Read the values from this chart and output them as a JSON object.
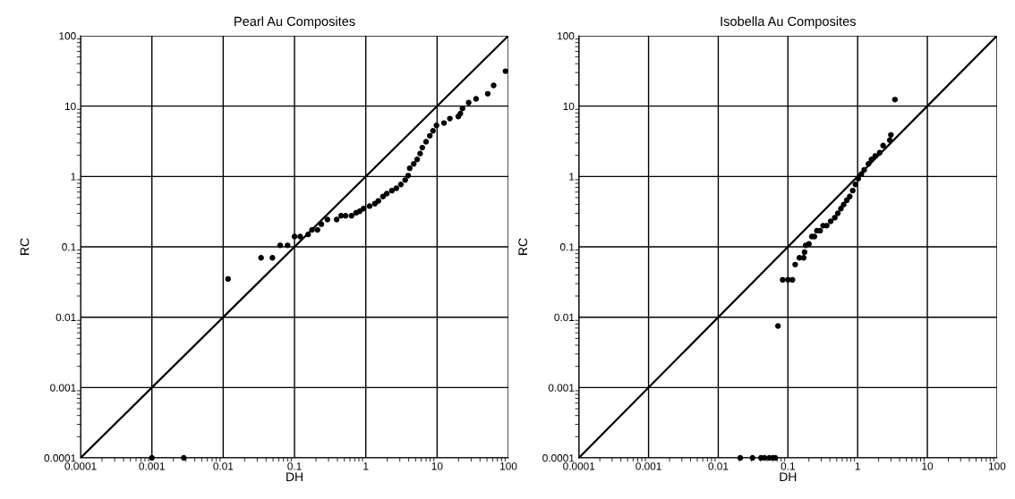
{
  "chart_data": [
    {
      "type": "scatter",
      "title": "Pearl Au Composites",
      "xlabel": "DH",
      "ylabel": "RC",
      "log": "xy",
      "grid": true,
      "legend": false,
      "marker": "circle",
      "xlim": [
        0.0001,
        100
      ],
      "ylim": [
        0.0001,
        100
      ],
      "xticks": [
        0.0001,
        0.001,
        0.01,
        0.1,
        1,
        10,
        100
      ],
      "yticks": [
        0.0001,
        0.001,
        0.01,
        0.1,
        1,
        10,
        100
      ],
      "series": [
        {
          "color": "#000000",
          "x": [
            0.001,
            0.0028,
            0.0117,
            0.034,
            0.049,
            0.063,
            0.08,
            0.1,
            0.12,
            0.155,
            0.176,
            0.21,
            0.238,
            0.29,
            0.39,
            0.45,
            0.52,
            0.63,
            0.73,
            0.82,
            0.93,
            1.13,
            1.34,
            1.5,
            1.74,
            1.97,
            2.32,
            2.68,
            3.1,
            3.57,
            3.93,
            4.13,
            4.7,
            5.25,
            5.78,
            6.2,
            7.0,
            7.9,
            8.75,
            9.8,
            12.5,
            15.1,
            19.8,
            21.2,
            22.7,
            27.7,
            35.2,
            51.3,
            62,
            91
          ],
          "values": [
            0.0001,
            0.0001,
            0.035,
            0.07,
            0.07,
            0.105,
            0.105,
            0.14,
            0.14,
            0.15,
            0.174,
            0.174,
            0.21,
            0.244,
            0.244,
            0.277,
            0.277,
            0.277,
            0.305,
            0.32,
            0.35,
            0.38,
            0.41,
            0.45,
            0.52,
            0.57,
            0.63,
            0.68,
            0.77,
            0.89,
            1.03,
            1.31,
            1.51,
            1.75,
            2.12,
            2.57,
            3.12,
            3.79,
            4.47,
            5.32,
            5.75,
            6.65,
            7.13,
            7.85,
            9.25,
            11.2,
            12.7,
            15.0,
            19.7,
            31.4
          ]
        },
        {
          "type": "line",
          "color": "#000000",
          "marker": "none",
          "x": [
            0.0001,
            100
          ],
          "values": [
            0.0001,
            100
          ]
        }
      ]
    },
    {
      "type": "scatter",
      "title": "Isobella Au Composites",
      "xlabel": "DH",
      "ylabel": "RC",
      "log": "xy",
      "grid": true,
      "legend": false,
      "marker": "circle",
      "xlim": [
        0.0001,
        100
      ],
      "ylim": [
        0.0001,
        100
      ],
      "xticks": [
        0.0001,
        0.001,
        0.01,
        0.1,
        1,
        10,
        100
      ],
      "yticks": [
        0.0001,
        0.001,
        0.01,
        0.1,
        1,
        10,
        100
      ],
      "series": [
        {
          "color": "#000000",
          "x": [
            0.0207,
            0.031,
            0.041,
            0.046,
            0.054,
            0.061,
            0.066,
            0.072,
            0.084,
            0.1,
            0.116,
            0.127,
            0.146,
            0.168,
            0.173,
            0.18,
            0.2,
            0.22,
            0.24,
            0.26,
            0.29,
            0.32,
            0.36,
            0.41,
            0.47,
            0.52,
            0.575,
            0.63,
            0.7,
            0.77,
            0.85,
            0.93,
            1.02,
            1.13,
            1.24,
            1.43,
            1.58,
            1.79,
            2.07,
            2.32,
            2.89,
            3.0,
            3.43
          ],
          "values": [
            0.0001,
            0.0001,
            0.0001,
            0.0001,
            0.0001,
            0.0001,
            0.0001,
            0.0075,
            0.034,
            0.034,
            0.034,
            0.056,
            0.07,
            0.07,
            0.084,
            0.105,
            0.11,
            0.14,
            0.14,
            0.17,
            0.17,
            0.2,
            0.2,
            0.23,
            0.26,
            0.3,
            0.35,
            0.4,
            0.46,
            0.52,
            0.63,
            0.77,
            0.93,
            1.08,
            1.24,
            1.51,
            1.75,
            1.96,
            2.18,
            2.75,
            3.28,
            3.9,
            12.4
          ]
        },
        {
          "type": "line",
          "color": "#000000",
          "marker": "none",
          "x": [
            0.0001,
            100
          ],
          "values": [
            0.0001,
            100
          ]
        }
      ]
    }
  ]
}
